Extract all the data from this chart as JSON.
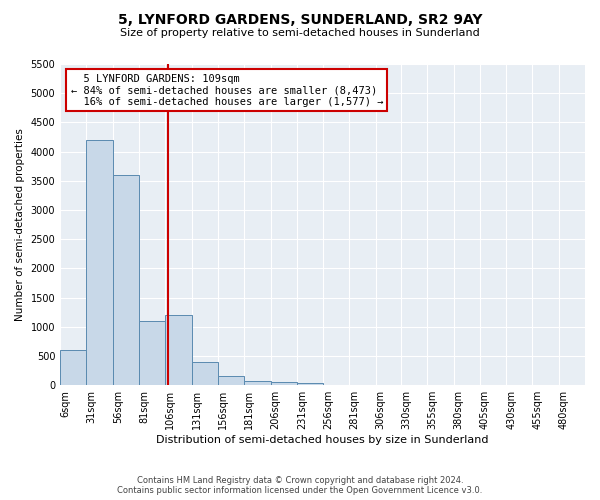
{
  "title": "5, LYNFORD GARDENS, SUNDERLAND, SR2 9AY",
  "subtitle": "Size of property relative to semi-detached houses in Sunderland",
  "xlabel": "Distribution of semi-detached houses by size in Sunderland",
  "ylabel": "Number of semi-detached properties",
  "footer_line1": "Contains HM Land Registry data © Crown copyright and database right 2024.",
  "footer_line2": "Contains public sector information licensed under the Open Government Licence v3.0.",
  "property_size": 109,
  "property_label": "5 LYNFORD GARDENS: 109sqm",
  "pct_smaller": 84,
  "n_smaller": 8473,
  "pct_larger": 16,
  "n_larger": 1577,
  "bin_edges": [
    6,
    31,
    56,
    81,
    106,
    131,
    156,
    181,
    206,
    231,
    256,
    281,
    306,
    330,
    355,
    380,
    405,
    430,
    455,
    480,
    505
  ],
  "bar_heights": [
    600,
    4200,
    3600,
    1100,
    1200,
    400,
    150,
    75,
    50,
    30,
    0,
    0,
    0,
    0,
    0,
    0,
    0,
    0,
    0,
    0
  ],
  "bar_color": "#c8d8e8",
  "bar_edge_color": "#5a8ab0",
  "red_line_color": "#cc0000",
  "annotation_box_color": "#cc0000",
  "background_color": "#e8eef4",
  "ylim": [
    0,
    5500
  ],
  "yticks": [
    0,
    500,
    1000,
    1500,
    2000,
    2500,
    3000,
    3500,
    4000,
    4500,
    5000,
    5500
  ]
}
